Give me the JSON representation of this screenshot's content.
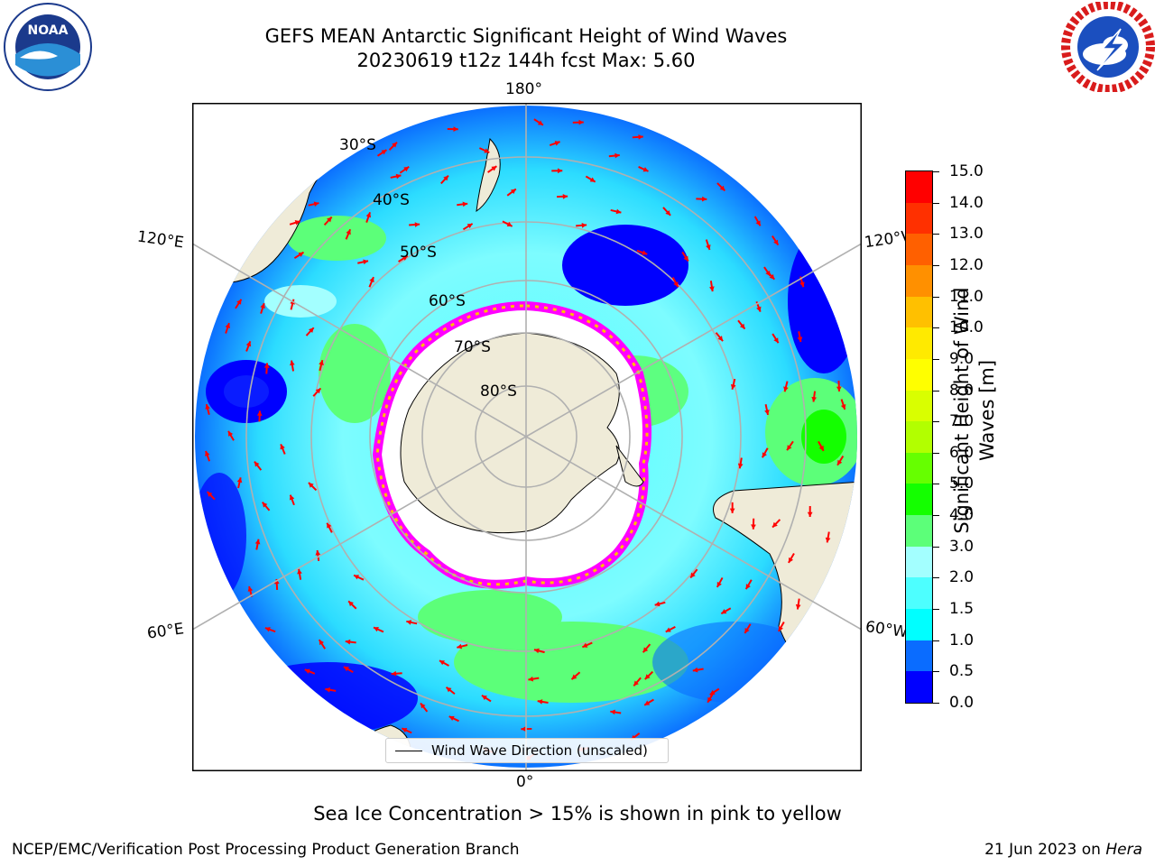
{
  "title": {
    "line1": "GEFS MEAN Antarctic Significant Height of Wind Waves",
    "line2": "20230619 t12z 144h fcst   Max: 5.60"
  },
  "logos": {
    "left": "noaa-logo",
    "right": "nws-logo",
    "left_text": "NOAA"
  },
  "map": {
    "projection": "south-polar-stereographic",
    "colors": {
      "land": "#efebd8",
      "ocean_dark": "#0000ff",
      "ice_edge": "#ff00ff",
      "ice_fill": "#ffffff",
      "arrow": "#ff0000",
      "grid": "#b0b0b0"
    },
    "lon_labels": {
      "top": "180°",
      "bottom": "0°",
      "left_upper": "120°E",
      "left_lower": "60°E",
      "right_upper": "120°W",
      "right_lower": "60°W"
    },
    "lat_labels": [
      "30°S",
      "40°S",
      "50°S",
      "60°S",
      "70°S",
      "80°S"
    ],
    "legend": {
      "label": "Wind Wave Direction (unscaled)"
    }
  },
  "colorbar": {
    "label": "Significant Height of Wind Waves [m]",
    "label_line1": "Significant Height of Wind",
    "label_line2": "Waves [m]",
    "ticks": [
      "0.0",
      "0.5",
      "1.0",
      "1.5",
      "2.0",
      "3.0",
      "4.0",
      "5.0",
      "6.0",
      "7.0",
      "8.0",
      "9.0",
      "10.0",
      "11.0",
      "12.0",
      "13.0",
      "14.0",
      "15.0"
    ],
    "colors": [
      "#0000ff",
      "#0a6cff",
      "#00ffff",
      "#4dffff",
      "#a3ffff",
      "#5cff79",
      "#14ff00",
      "#66ff00",
      "#b2ff00",
      "#d9ff00",
      "#ffff00",
      "#ffea00",
      "#ffc000",
      "#ff9000",
      "#ff6000",
      "#ff3000",
      "#ff0000"
    ]
  },
  "note": "Sea Ice Concentration > 15% is shown in pink to yellow",
  "footer": {
    "left": "NCEP/EMC/Verification Post Processing Product Generation Branch",
    "right_prefix": "21 Jun 2023 on ",
    "right_host": "Hera"
  }
}
